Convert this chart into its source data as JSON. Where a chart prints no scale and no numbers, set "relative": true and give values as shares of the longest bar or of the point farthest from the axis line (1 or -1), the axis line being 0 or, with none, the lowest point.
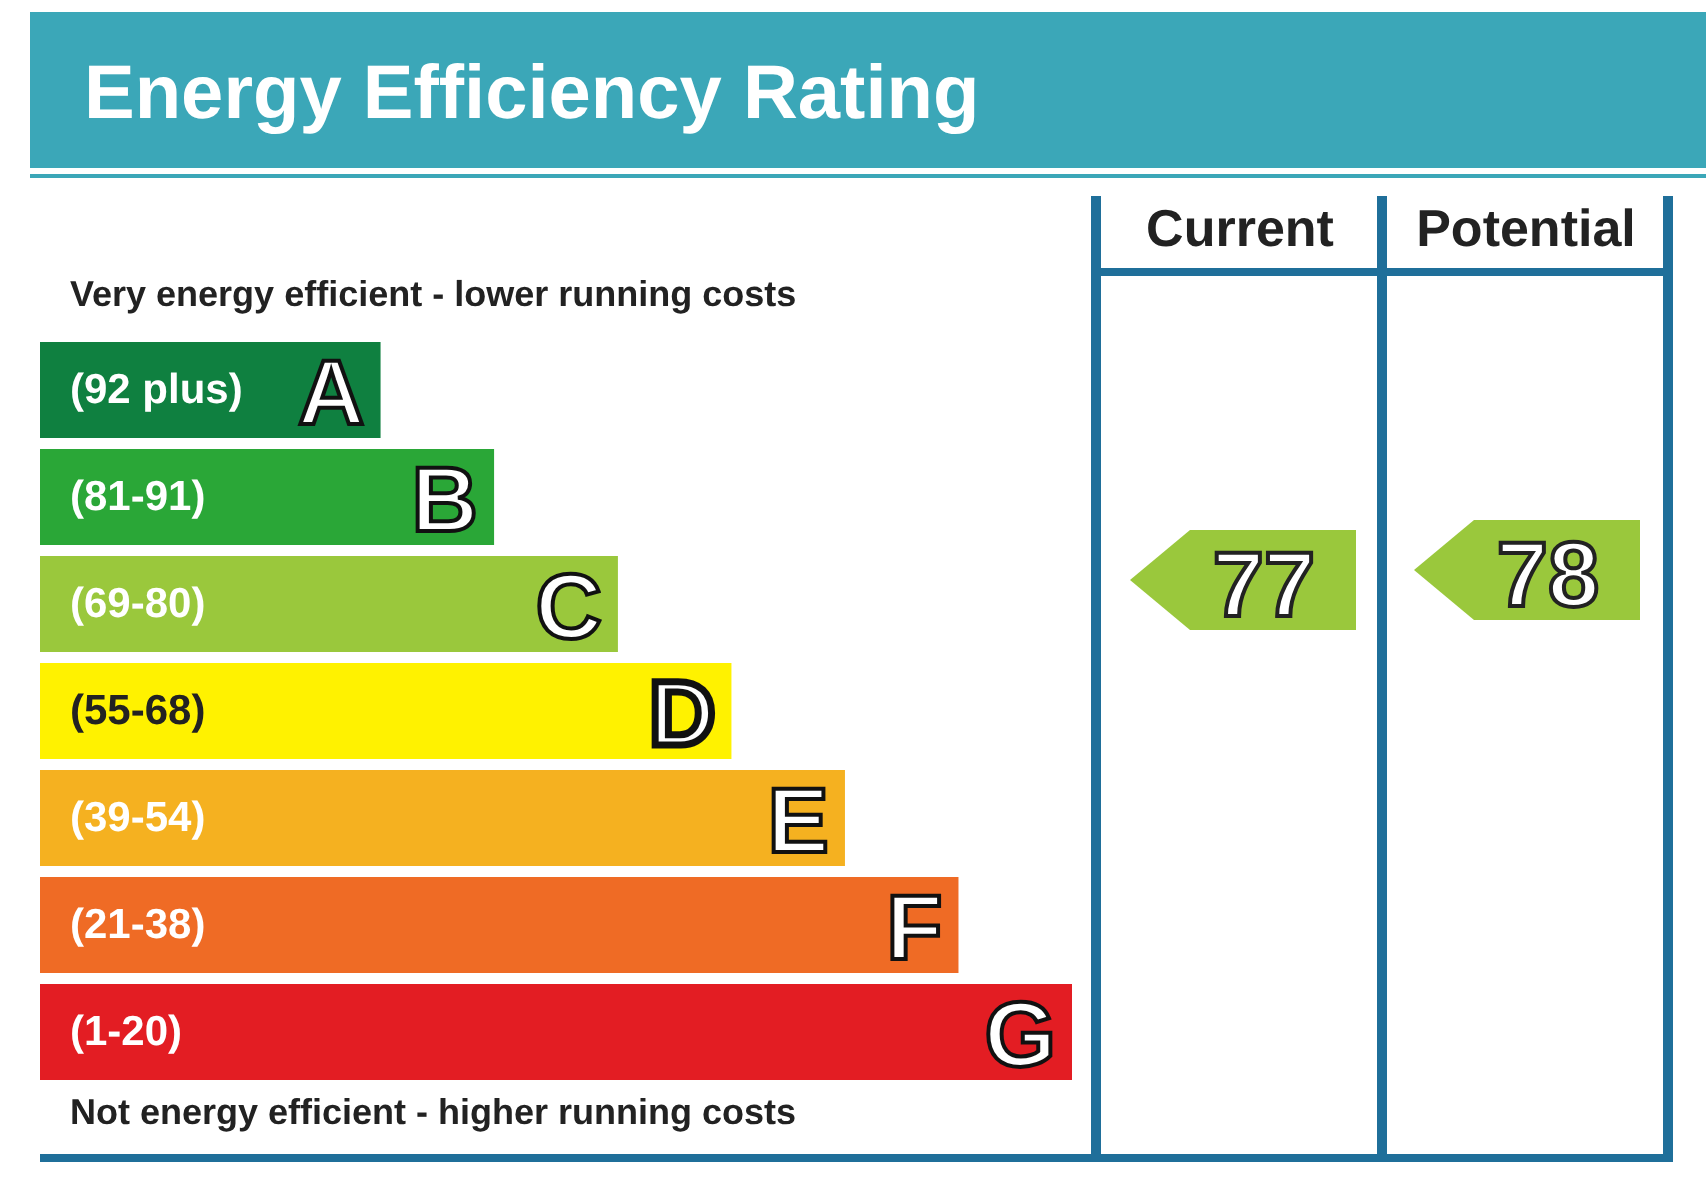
{
  "chart_data": {
    "type": "bar",
    "orientation": "horizontal",
    "relative": true,
    "title": "Energy Efficiency Rating",
    "categories": [
      "A",
      "B",
      "C",
      "D",
      "E",
      "F",
      "G"
    ],
    "values": [
      0.33,
      0.44,
      0.56,
      0.67,
      0.78,
      0.89,
      1
    ],
    "colors": [
      "#0f8040",
      "#2aa737",
      "#9ac83c",
      "#fff200",
      "#f5b120",
      "#ef6b25",
      "#e31d23"
    ],
    "annotations": [
      "Very energy efficient - lower running costs",
      "Not energy efficient - higher running costs",
      "Current",
      "Potential",
      "(92 plus)",
      "(81-91)",
      "(69-80)",
      "(55-68)",
      "(39-54)",
      "(21-38)",
      "(1-20)",
      "77",
      "78"
    ]
  }
}
